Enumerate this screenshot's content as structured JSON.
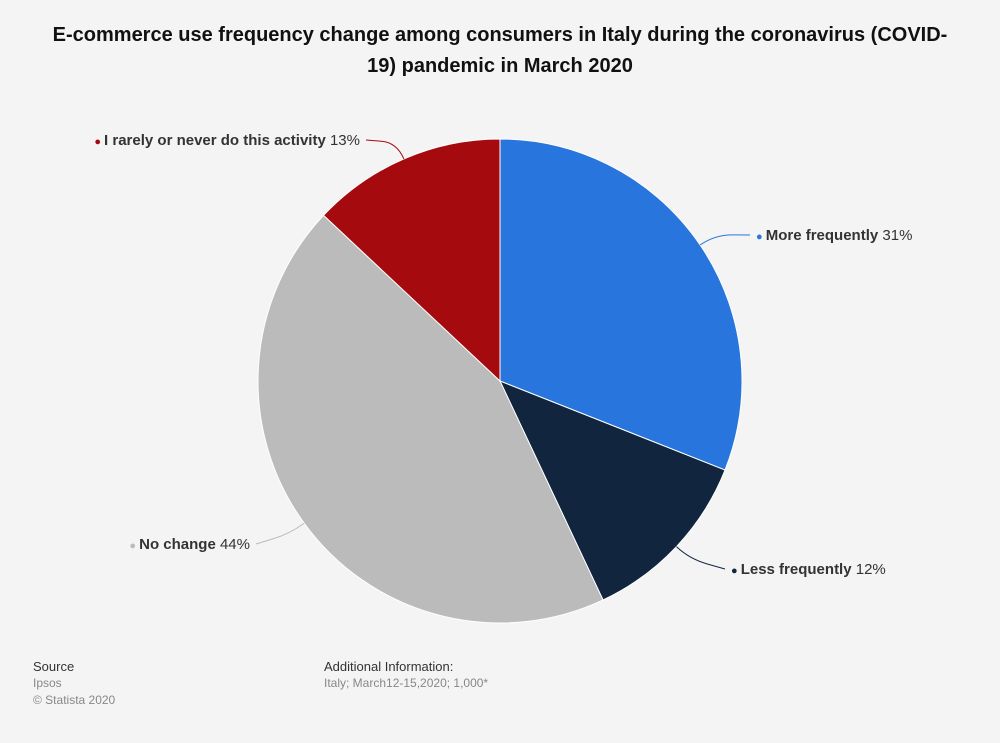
{
  "chart_data": {
    "type": "pie",
    "title": "E-commerce use frequency change among consumers in Italy during the coronavirus (COVID-19) pandemic in March 2020",
    "slices": [
      {
        "label": "More frequently",
        "value": 31,
        "value_label": "31%",
        "color": "#2876dd"
      },
      {
        "label": "Less frequently",
        "value": 12,
        "value_label": "12%",
        "color": "#11263e"
      },
      {
        "label": "No change",
        "value": 44,
        "value_label": "44%",
        "color": "#bbbbbb"
      },
      {
        "label": "I rarely or never do this activity",
        "value": 13,
        "value_label": "13%",
        "color": "#a50b0e"
      }
    ]
  },
  "footer": {
    "source_heading": "Source",
    "source_name": "Ipsos",
    "copyright": "© Statista 2020",
    "additional_heading": "Additional Information:",
    "additional_text": "Italy; March12-15,2020; 1,000*"
  }
}
